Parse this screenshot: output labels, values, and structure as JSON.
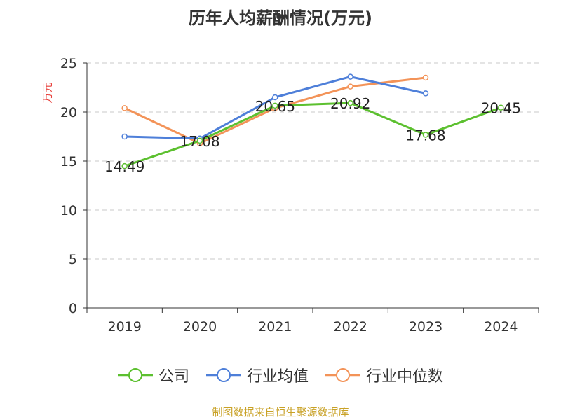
{
  "title": "历年人均薪酬情况(万元)",
  "source_note": "制图数据来自恒生聚源数据库",
  "chart_data": {
    "type": "line",
    "title": "历年人均薪酬情况(万元)",
    "xlabel": "",
    "ylabel": "万元",
    "categories": [
      "2019",
      "2020",
      "2021",
      "2022",
      "2023",
      "2024"
    ],
    "ylim": [
      0,
      25
    ],
    "yticks": [
      0,
      5,
      10,
      15,
      20,
      25
    ],
    "grid": true,
    "legend_position": "bottom",
    "series": [
      {
        "name": "公司",
        "color": "#5cc02f",
        "values": [
          14.49,
          17.08,
          20.65,
          20.92,
          17.68,
          20.45
        ],
        "show_labels": true
      },
      {
        "name": "行业均值",
        "color": "#4e7fd9",
        "values": [
          17.5,
          17.3,
          21.5,
          23.6,
          21.9,
          null
        ],
        "show_labels": false
      },
      {
        "name": "行业中位数",
        "color": "#f39358",
        "values": [
          20.4,
          16.8,
          20.4,
          22.6,
          23.5,
          null
        ],
        "show_labels": false
      }
    ]
  }
}
